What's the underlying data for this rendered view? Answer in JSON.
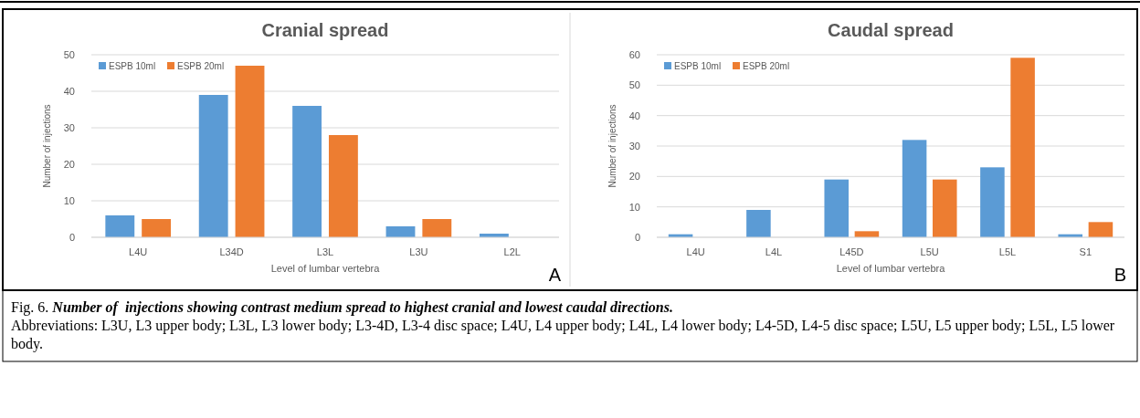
{
  "chart_data": [
    {
      "type": "bar",
      "title": "Cranial spread",
      "xlabel": "Level of lumbar vertebra",
      "ylabel": "Number of injections",
      "categories": [
        "L4U",
        "L34D",
        "L3L",
        "L3U",
        "L2L"
      ],
      "series": [
        {
          "name": "ESPB 10ml",
          "color": "#5b9bd5",
          "values": [
            6,
            39,
            36,
            3,
            1
          ]
        },
        {
          "name": "ESPB 20ml",
          "color": "#ed7d31",
          "values": [
            5,
            47,
            28,
            5,
            0
          ]
        }
      ],
      "ylim": [
        0,
        50
      ],
      "yticks": [
        0,
        10,
        20,
        30,
        40,
        50
      ],
      "grid": "y",
      "legend": "top left",
      "annotations": [
        "A"
      ]
    },
    {
      "type": "bar",
      "title": "Caudal spread",
      "xlabel": "Level of lumbar vertebra",
      "ylabel": "Number of injections",
      "categories": [
        "L4U",
        "L4L",
        "L45D",
        "L5U",
        "L5L",
        "S1"
      ],
      "series": [
        {
          "name": "ESPB 10ml",
          "color": "#5b9bd5",
          "values": [
            1,
            9,
            19,
            32,
            23,
            1
          ]
        },
        {
          "name": "ESPB 20ml",
          "color": "#ed7d31",
          "values": [
            0,
            0,
            2,
            19,
            59,
            5
          ]
        }
      ],
      "ylim": [
        0,
        60
      ],
      "yticks": [
        0,
        10,
        20,
        30,
        40,
        50,
        60
      ],
      "grid": "y",
      "legend": "top left",
      "annotations": [
        "B",
        "Fig. 6. Number of  injections showing contrast medium spread to highest cranial and lowest caudal directions.",
        "Abbreviations: L3U, L3 upper body; L3L, L3 lower body; L3-4D, L3-4 disc space; L4U, L4 upper body; L4L, L4 lower body; L4-5D, L4-5 disc space; L5U, L5 upper body; L5L, L5 lower body."
      ]
    }
  ]
}
